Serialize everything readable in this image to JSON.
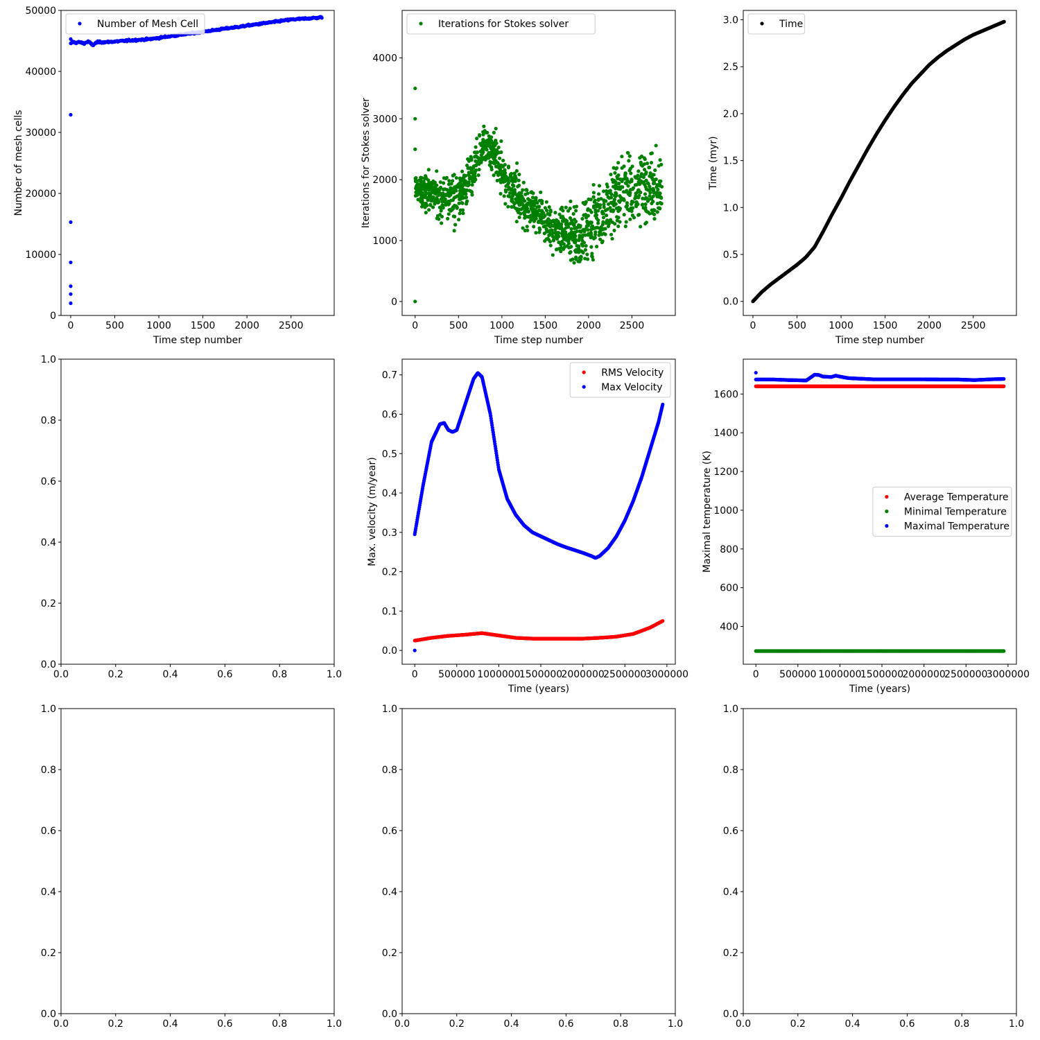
{
  "colors": {
    "blue": "#0000ff",
    "green": "#008000",
    "black": "#000000",
    "red": "#ff0000"
  },
  "chart_data": [
    {
      "id": "mesh",
      "type": "scatter",
      "xlabel": "Time step number",
      "ylabel": "Number of mesh cells",
      "xlim": [
        -110,
        2990
      ],
      "ylim": [
        0,
        50000
      ],
      "xticks": [
        0,
        500,
        1000,
        1500,
        2000,
        2500
      ],
      "xtick_labels": [
        "0",
        "500",
        "1000",
        "1500",
        "2000",
        "2500"
      ],
      "yticks": [
        0,
        10000,
        20000,
        30000,
        40000,
        50000
      ],
      "ytick_labels": [
        "0",
        "10000",
        "20000",
        "30000",
        "40000",
        "50000"
      ],
      "legend_position": "top-left",
      "series": [
        {
          "name": "Number of Mesh Cell",
          "color": "#0000ff",
          "x": [
            0,
            0,
            0,
            0,
            0,
            0,
            0,
            0,
            5,
            20,
            50,
            100,
            150,
            200,
            250,
            300,
            400,
            500,
            600,
            700,
            800,
            900,
            1000,
            1100,
            1200,
            1300,
            1400,
            1500,
            1600,
            1700,
            1800,
            1900,
            2000,
            2100,
            2200,
            2300,
            2400,
            2500,
            2600,
            2700,
            2800,
            2850
          ],
          "y": [
            2000,
            3500,
            4800,
            8700,
            15300,
            32900,
            44600,
            45300,
            44500,
            44900,
            44700,
            44800,
            44600,
            44900,
            44300,
            44800,
            44800,
            44900,
            45000,
            45100,
            45200,
            45300,
            45500,
            45700,
            45900,
            46100,
            46300,
            46500,
            46700,
            46900,
            47100,
            47300,
            47500,
            47700,
            47900,
            48100,
            48300,
            48500,
            48600,
            48700,
            48800,
            48900
          ]
        }
      ]
    },
    {
      "id": "stokes",
      "type": "scatter",
      "xlabel": "Time step number",
      "ylabel": "Iterations for Stokes solver",
      "xlim": [
        -150,
        3000
      ],
      "ylim": [
        -230,
        4780
      ],
      "xticks": [
        0,
        500,
        1000,
        1500,
        2000,
        2500
      ],
      "xtick_labels": [
        "0",
        "500",
        "1000",
        "1500",
        "2000",
        "2500"
      ],
      "yticks": [
        0,
        1000,
        2000,
        3000,
        4000
      ],
      "ytick_labels": [
        "0",
        "1000",
        "2000",
        "3000",
        "4000"
      ],
      "legend_position": "top-left",
      "series": [
        {
          "name": "Iterations for Stokes solver",
          "color": "#008000",
          "x_range": [
            0,
            2850
          ],
          "count": 1400,
          "anchors_x": [
            0,
            100,
            300,
            500,
            700,
            800,
            900,
            1000,
            1200,
            1400,
            1600,
            1800,
            1900,
            2000,
            2100,
            2200,
            2400,
            2600,
            2850
          ],
          "anchors_center": [
            1900,
            1800,
            1700,
            1700,
            2200,
            2600,
            2500,
            2100,
            1700,
            1400,
            1200,
            1100,
            1000,
            1200,
            1400,
            1500,
            1900,
            1900,
            1800
          ],
          "anchors_spread": [
            700,
            700,
            800,
            800,
            800,
            800,
            800,
            900,
            800,
            700,
            900,
            1000,
            1100,
            1200,
            1300,
            1300,
            1400,
            1400,
            1300
          ],
          "outliers_x": [
            0,
            0,
            0,
            0
          ],
          "outliers_y": [
            0,
            3500,
            3000,
            2500
          ]
        }
      ]
    },
    {
      "id": "time",
      "type": "scatter",
      "xlabel": "Time step number",
      "ylabel": "Time (myr)",
      "xlim": [
        -110,
        2990
      ],
      "ylim": [
        -0.15,
        3.1
      ],
      "xticks": [
        0,
        500,
        1000,
        1500,
        2000,
        2500
      ],
      "xtick_labels": [
        "0",
        "500",
        "1000",
        "1500",
        "2000",
        "2500"
      ],
      "yticks": [
        0,
        0.5,
        1.0,
        1.5,
        2.0,
        2.5,
        3.0
      ],
      "ytick_labels": [
        "0.0",
        "0.5",
        "1.0",
        "1.5",
        "2.0",
        "2.5",
        "3.0"
      ],
      "legend_position": "top-left",
      "series": [
        {
          "name": "Time",
          "color": "#000000",
          "x": [
            0,
            100,
            200,
            300,
            400,
            500,
            600,
            700,
            800,
            900,
            1000,
            1100,
            1200,
            1300,
            1400,
            1500,
            1600,
            1700,
            1800,
            1900,
            2000,
            2100,
            2200,
            2300,
            2400,
            2500,
            2600,
            2700,
            2800,
            2850
          ],
          "y": [
            0.0,
            0.1,
            0.18,
            0.25,
            0.32,
            0.39,
            0.47,
            0.58,
            0.75,
            0.93,
            1.1,
            1.28,
            1.45,
            1.62,
            1.78,
            1.93,
            2.07,
            2.2,
            2.32,
            2.42,
            2.52,
            2.6,
            2.67,
            2.73,
            2.79,
            2.84,
            2.88,
            2.92,
            2.96,
            2.98
          ]
        }
      ]
    },
    {
      "id": "empty-middle-left",
      "type": "scatter",
      "xlabel": "",
      "ylabel": "",
      "xlim": [
        0,
        1
      ],
      "ylim": [
        0,
        1
      ],
      "xticks": [
        0,
        0.2,
        0.4,
        0.6,
        0.8,
        1.0
      ],
      "xtick_labels": [
        "0.0",
        "0.2",
        "0.4",
        "0.6",
        "0.8",
        "1.0"
      ],
      "yticks": [
        0,
        0.2,
        0.4,
        0.6,
        0.8,
        1.0
      ],
      "ytick_labels": [
        "0.0",
        "0.2",
        "0.4",
        "0.6",
        "0.8",
        "1.0"
      ],
      "series": []
    },
    {
      "id": "velocity",
      "type": "scatter",
      "xlabel": "Time (years)",
      "ylabel": "Max. velocity (m/year)",
      "xlim": [
        -150000,
        3100000
      ],
      "ylim": [
        -0.035,
        0.74
      ],
      "xticks": [
        0,
        500000,
        1000000,
        1500000,
        2000000,
        2500000,
        3000000
      ],
      "xtick_labels": [
        "0",
        "500000",
        "1000000",
        "1500000",
        "2000000",
        "2500000",
        "3000000"
      ],
      "yticks": [
        0,
        0.1,
        0.2,
        0.3,
        0.4,
        0.5,
        0.6,
        0.7
      ],
      "ytick_labels": [
        "0.0",
        "0.1",
        "0.2",
        "0.3",
        "0.4",
        "0.5",
        "0.6",
        "0.7"
      ],
      "legend_position": "top-right",
      "series": [
        {
          "name": "RMS Velocity",
          "color": "#ff0000",
          "x": [
            0,
            200000,
            400000,
            600000,
            800000,
            1000000,
            1200000,
            1400000,
            1600000,
            1800000,
            2000000,
            2200000,
            2400000,
            2600000,
            2800000,
            2950000
          ],
          "y": [
            0.025,
            0.032,
            0.037,
            0.04,
            0.044,
            0.038,
            0.032,
            0.03,
            0.03,
            0.03,
            0.03,
            0.032,
            0.035,
            0.042,
            0.058,
            0.075
          ]
        },
        {
          "name": "Max Velocity",
          "color": "#0000ff",
          "x": [
            0,
            100000,
            200000,
            300000,
            350000,
            400000,
            450000,
            500000,
            600000,
            700000,
            750000,
            800000,
            900000,
            1000000,
            1100000,
            1200000,
            1300000,
            1400000,
            1500000,
            1600000,
            1700000,
            1800000,
            1900000,
            2000000,
            2100000,
            2150000,
            2200000,
            2300000,
            2400000,
            2500000,
            2600000,
            2700000,
            2800000,
            2900000,
            2950000
          ],
          "y": [
            0.295,
            0.42,
            0.53,
            0.575,
            0.578,
            0.56,
            0.555,
            0.56,
            0.625,
            0.69,
            0.705,
            0.695,
            0.6,
            0.46,
            0.385,
            0.345,
            0.318,
            0.3,
            0.29,
            0.28,
            0.27,
            0.262,
            0.255,
            0.248,
            0.24,
            0.235,
            0.24,
            0.26,
            0.29,
            0.33,
            0.38,
            0.44,
            0.51,
            0.58,
            0.625
          ],
          "extra_x": [
            0
          ],
          "extra_y": [
            0.0
          ]
        }
      ]
    },
    {
      "id": "temperature",
      "type": "scatter",
      "xlabel": "Time (years)",
      "ylabel": "Maximal temperature (K)",
      "xlim": [
        -150000,
        3100000
      ],
      "ylim": [
        205,
        1780
      ],
      "xticks": [
        0,
        500000,
        1000000,
        1500000,
        2000000,
        2500000,
        3000000
      ],
      "xtick_labels": [
        "0",
        "500000",
        "1000000",
        "1500000",
        "2000000",
        "2500000",
        "3000000"
      ],
      "yticks": [
        400,
        600,
        800,
        1000,
        1200,
        1400,
        1600
      ],
      "ytick_labels": [
        "400",
        "600",
        "800",
        "1000",
        "1200",
        "1400",
        "1600"
      ],
      "legend_position": "center-right",
      "series": [
        {
          "name": "Average Temperature",
          "color": "#ff0000",
          "x": [
            0,
            500000,
            1000000,
            1500000,
            2000000,
            2500000,
            2950000
          ],
          "y": [
            1640,
            1640,
            1640,
            1640,
            1640,
            1640,
            1640
          ]
        },
        {
          "name": "Minimal Temperature",
          "color": "#008000",
          "x": [
            0,
            500000,
            1000000,
            1500000,
            2000000,
            2500000,
            2950000
          ],
          "y": [
            273,
            273,
            273,
            273,
            273,
            273,
            273
          ]
        },
        {
          "name": "Maximal Temperature",
          "color": "#0000ff",
          "x": [
            0,
            200000,
            400000,
            600000,
            650000,
            700000,
            750000,
            800000,
            900000,
            950000,
            1000000,
            1100000,
            1200000,
            1400000,
            1600000,
            1800000,
            2000000,
            2200000,
            2400000,
            2600000,
            2800000,
            2950000
          ],
          "y": [
            1675,
            1675,
            1672,
            1670,
            1685,
            1700,
            1698,
            1690,
            1688,
            1695,
            1690,
            1682,
            1680,
            1676,
            1676,
            1676,
            1676,
            1675,
            1675,
            1672,
            1676,
            1678
          ],
          "extra_x": [
            0
          ],
          "extra_y": [
            1710
          ]
        }
      ]
    },
    {
      "id": "empty-bottom-left",
      "type": "scatter",
      "xlabel": "",
      "ylabel": "",
      "xlim": [
        0,
        1
      ],
      "ylim": [
        0,
        1
      ],
      "xticks": [
        0,
        0.2,
        0.4,
        0.6,
        0.8,
        1.0
      ],
      "xtick_labels": [
        "0.0",
        "0.2",
        "0.4",
        "0.6",
        "0.8",
        "1.0"
      ],
      "yticks": [
        0,
        0.2,
        0.4,
        0.6,
        0.8,
        1.0
      ],
      "ytick_labels": [
        "0.0",
        "0.2",
        "0.4",
        "0.6",
        "0.8",
        "1.0"
      ],
      "series": []
    },
    {
      "id": "empty-bottom-middle",
      "type": "scatter",
      "xlabel": "",
      "ylabel": "",
      "xlim": [
        0,
        1
      ],
      "ylim": [
        0,
        1
      ],
      "xticks": [
        0,
        0.2,
        0.4,
        0.6,
        0.8,
        1.0
      ],
      "xtick_labels": [
        "0.0",
        "0.2",
        "0.4",
        "0.6",
        "0.8",
        "1.0"
      ],
      "yticks": [
        0,
        0.2,
        0.4,
        0.6,
        0.8,
        1.0
      ],
      "ytick_labels": [
        "0.0",
        "0.2",
        "0.4",
        "0.6",
        "0.8",
        "1.0"
      ],
      "series": []
    },
    {
      "id": "empty-bottom-right",
      "type": "scatter",
      "xlabel": "",
      "ylabel": "",
      "xlim": [
        0,
        1
      ],
      "ylim": [
        0,
        1
      ],
      "xticks": [
        0,
        0.2,
        0.4,
        0.6,
        0.8,
        1.0
      ],
      "xtick_labels": [
        "0.0",
        "0.2",
        "0.4",
        "0.6",
        "0.8",
        "1.0"
      ],
      "yticks": [
        0,
        0.2,
        0.4,
        0.6,
        0.8,
        1.0
      ],
      "ytick_labels": [
        "0.0",
        "0.2",
        "0.4",
        "0.6",
        "0.8",
        "1.0"
      ],
      "series": []
    }
  ]
}
